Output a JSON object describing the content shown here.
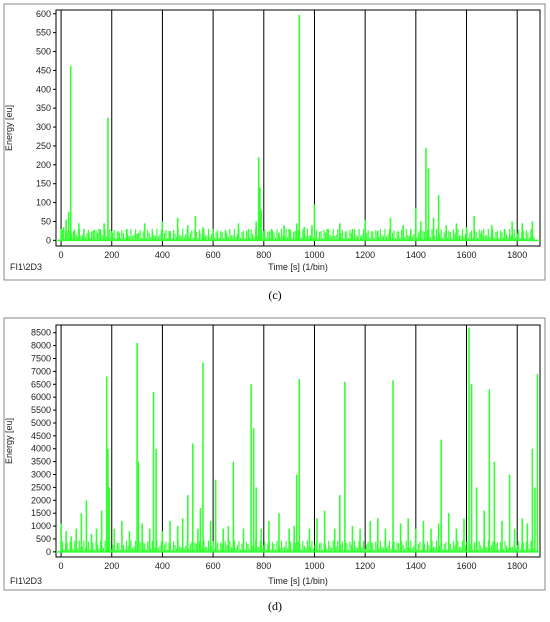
{
  "chart_data": [
    {
      "type": "bar",
      "panel": "(c)",
      "corner_label": "FI1\\2D3",
      "xlabel": "Time [s]  (1/bin)",
      "ylabel": "Energy [eu]",
      "xlim": [
        -20,
        1890
      ],
      "ylim": [
        -15,
        610
      ],
      "xticks": [
        0,
        200,
        400,
        600,
        800,
        1000,
        1200,
        1400,
        1600,
        1800
      ],
      "yticks": [
        0,
        50,
        100,
        150,
        200,
        250,
        300,
        350,
        400,
        450,
        500,
        550,
        600
      ],
      "grid": true,
      "color": "#33ff33",
      "x": [
        0,
        10,
        20,
        30,
        38,
        50,
        70,
        90,
        110,
        130,
        150,
        170,
        185,
        200,
        230,
        260,
        300,
        330,
        360,
        400,
        430,
        460,
        500,
        530,
        560,
        600,
        650,
        700,
        740,
        770,
        780,
        785,
        790,
        800,
        830,
        860,
        880,
        900,
        930,
        940,
        960,
        990,
        1000,
        1050,
        1100,
        1150,
        1200,
        1250,
        1300,
        1350,
        1380,
        1400,
        1420,
        1440,
        1450,
        1470,
        1490,
        1520,
        1560,
        1600,
        1630,
        1660,
        1700,
        1750,
        1780,
        1820,
        1860
      ],
      "values": [
        30,
        35,
        55,
        75,
        462,
        25,
        45,
        30,
        20,
        28,
        30,
        45,
        325,
        25,
        20,
        30,
        18,
        45,
        20,
        50,
        25,
        60,
        40,
        65,
        35,
        30,
        25,
        45,
        30,
        50,
        220,
        140,
        80,
        25,
        30,
        20,
        40,
        30,
        45,
        597,
        35,
        40,
        95,
        30,
        45,
        30,
        55,
        25,
        60,
        40,
        30,
        85,
        50,
        245,
        190,
        60,
        120,
        40,
        45,
        35,
        65,
        25,
        40,
        30,
        50,
        45,
        50
      ]
    },
    {
      "type": "bar",
      "panel": "(d)",
      "corner_label": "FI1\\2D3",
      "xlabel": "Time [s]  (1/bin)",
      "ylabel": "Energy [eu]",
      "xlim": [
        -20,
        1890
      ],
      "ylim": [
        -200,
        8800
      ],
      "xticks": [
        0,
        200,
        400,
        600,
        800,
        1000,
        1200,
        1400,
        1600,
        1800
      ],
      "yticks": [
        0,
        500,
        1000,
        1500,
        2000,
        2500,
        3000,
        3500,
        4000,
        4500,
        5000,
        5500,
        6000,
        6500,
        7000,
        7500,
        8000,
        8500
      ],
      "grid": true,
      "color": "#33ff33",
      "x": [
        0,
        20,
        40,
        60,
        80,
        100,
        120,
        140,
        160,
        180,
        185,
        190,
        210,
        240,
        270,
        300,
        305,
        320,
        350,
        365,
        375,
        400,
        430,
        460,
        480,
        500,
        520,
        540,
        550,
        560,
        590,
        610,
        640,
        660,
        680,
        720,
        750,
        760,
        770,
        790,
        820,
        860,
        900,
        920,
        930,
        940,
        980,
        1010,
        1040,
        1080,
        1100,
        1120,
        1150,
        1180,
        1220,
        1250,
        1280,
        1310,
        1340,
        1370,
        1400,
        1430,
        1460,
        1490,
        1500,
        1530,
        1560,
        1590,
        1610,
        1620,
        1640,
        1670,
        1690,
        1710,
        1740,
        1770,
        1790,
        1820,
        1840,
        1860,
        1870,
        1880
      ],
      "values": [
        1100,
        800,
        600,
        900,
        1500,
        2000,
        700,
        900,
        1600,
        6800,
        4000,
        2500,
        900,
        1200,
        800,
        8100,
        3500,
        1100,
        900,
        6200,
        4000,
        800,
        1200,
        1000,
        1300,
        2200,
        4200,
        900,
        1700,
        7350,
        1200,
        2800,
        900,
        1000,
        3500,
        900,
        6500,
        4800,
        2500,
        900,
        1200,
        1500,
        900,
        1000,
        3000,
        6700,
        900,
        1300,
        1600,
        900,
        2200,
        6600,
        1000,
        900,
        1200,
        1300,
        900,
        6650,
        1100,
        1300,
        900,
        1200,
        900,
        1100,
        4350,
        1500,
        900,
        1300,
        8700,
        6500,
        2500,
        1600,
        6300,
        3500,
        1200,
        3000,
        900,
        1300,
        1100,
        4000,
        2500,
        6900
      ]
    }
  ],
  "captions": [
    "(c)",
    "(d)"
  ]
}
